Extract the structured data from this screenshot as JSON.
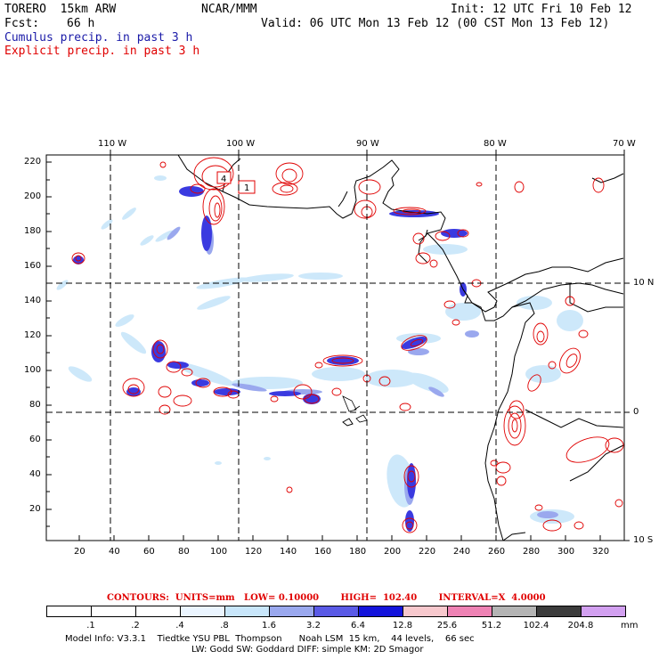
{
  "header": {
    "model": "TORERO  15km ARW",
    "org": "NCAR/MMM",
    "init": "Init: 12 UTC Fri 10 Feb 12",
    "fcst_label": "Fcst:",
    "fcst_value": "66 h",
    "valid": "Valid: 06 UTC Mon 13 Feb 12 (00 CST Mon 13 Feb 12)",
    "cumulus": "Cumulus precip. in past 3 h",
    "explicit": "Explicit precip. in past 3 h"
  },
  "map": {
    "top_lon_labels": [
      "110 W",
      "100 W",
      "90 W",
      "80 W",
      "70 W"
    ],
    "right_lat_labels": [
      "10 N",
      "0",
      "10 S"
    ],
    "y_ticks": [
      "220",
      "200",
      "180",
      "160",
      "140",
      "120",
      "100",
      "80",
      "60",
      "40",
      "20"
    ],
    "x_ticks": [
      "20",
      "40",
      "60",
      "80",
      "100",
      "120",
      "140",
      "160",
      "180",
      "200",
      "220",
      "240",
      "260",
      "280",
      "300",
      "320"
    ],
    "box_labels": [
      "4",
      "1"
    ],
    "colors": {
      "cumulus": "#2020d0",
      "explicit": "#e00000",
      "land": "#000000"
    }
  },
  "legend": {
    "contours_text": "CONTOURS:  UNITS=mm   LOW= 0.10000       HIGH=  102.40       INTERVAL=X  4.0000",
    "labels": [
      ".1",
      ".2",
      ".4",
      ".8",
      "1.6",
      "3.2",
      "6.4",
      "12.8",
      "25.6",
      "51.2",
      "102.4",
      "204.8"
    ],
    "unit": "mm",
    "colors": [
      "#ffffff",
      "#ffffff",
      "#ffffff",
      "#ebf5ff",
      "#c8e6fa",
      "#9aa8ee",
      "#5a5ae6",
      "#1414dc",
      "#f7c8cd",
      "#ee82b4",
      "#b4b4b4",
      "#3c3c3c",
      "#d2a0f0"
    ]
  },
  "model_info": {
    "line1": "Model Info: V3.3.1    Tiedtke YSU PBL  Thompson      Noah LSM  15 km,    44 levels,    66 sec",
    "line2": "LW: Godd SW: Goddard DIFF: simple KM: 2D Smagor"
  }
}
